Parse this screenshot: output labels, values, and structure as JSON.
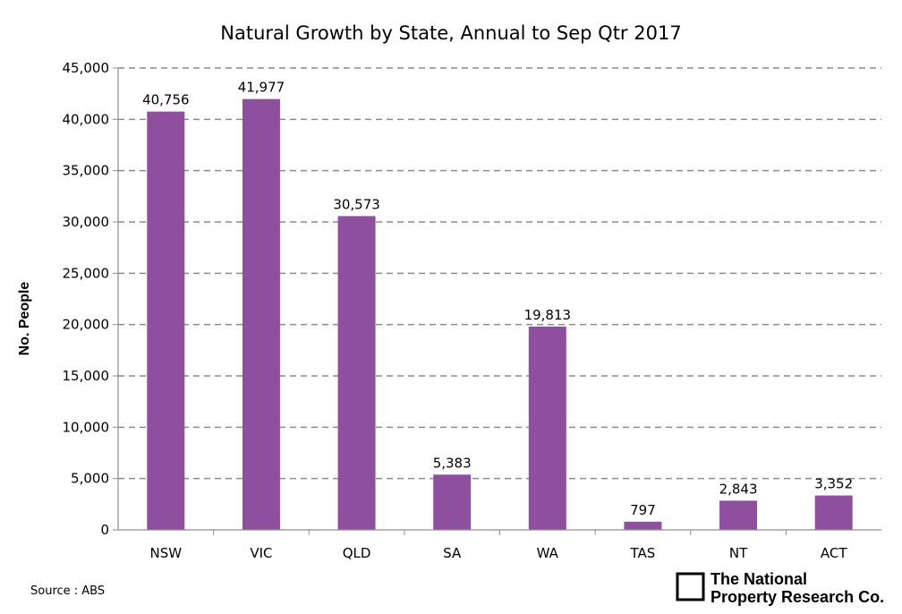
{
  "chart_data": {
    "type": "bar",
    "title": "Natural Growth by State, Annual to Sep Qtr 2017",
    "ylabel": "No. People",
    "xlabel": "",
    "categories": [
      "NSW",
      "VIC",
      "QLD",
      "SA",
      "WA",
      "TAS",
      "NT",
      "ACT"
    ],
    "values": [
      40756,
      41977,
      30573,
      5383,
      19813,
      797,
      2843,
      3352
    ],
    "data_labels": [
      "40,756",
      "41,977",
      "30,573",
      "5,383",
      "19,813",
      "797",
      "2,843",
      "3,352"
    ],
    "ylim": [
      0,
      45000
    ],
    "yticks": [
      0,
      5000,
      10000,
      15000,
      20000,
      25000,
      30000,
      35000,
      40000,
      45000
    ],
    "ytick_labels": [
      "0",
      "5,000",
      "10,000",
      "15,000",
      "20,000",
      "25,000",
      "30,000",
      "35,000",
      "40,000",
      "45,000"
    ],
    "grid": "horizontal-dashed",
    "legend": "none",
    "bar_color": "#8E4F9F",
    "grid_color": "#8c8c8c"
  },
  "source_text": "Source : ABS",
  "brand": {
    "line1": "The National",
    "line2": "Property Research Co.",
    "icon": "square-outline-icon"
  }
}
